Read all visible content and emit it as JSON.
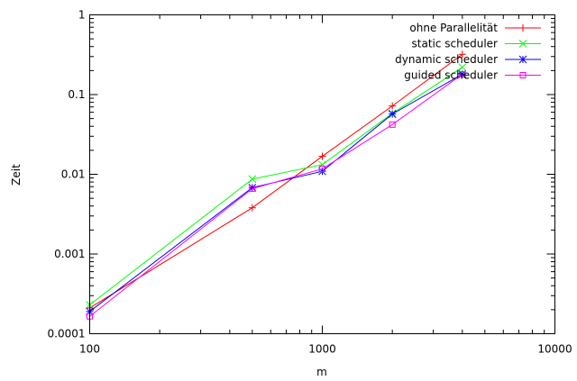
{
  "chart_data": {
    "type": "line",
    "title": "",
    "xlabel": "m",
    "ylabel": "Zeit",
    "xscale": "log",
    "yscale": "log",
    "xlim": [
      100,
      10000
    ],
    "ylim": [
      0.0001,
      1
    ],
    "x_ticks": [
      "100",
      "1000",
      "10000"
    ],
    "y_ticks": [
      "0.0001",
      "0.001",
      "0.01",
      "0.1",
      "1"
    ],
    "grid": false,
    "legend_position": "top-right",
    "series": [
      {
        "name": "ohne Parallelität",
        "color": "#ff0000",
        "marker": "plus",
        "x": [
          100,
          500,
          1000,
          2000,
          4000
        ],
        "y": [
          0.00021,
          0.0038,
          0.0168,
          0.072,
          0.32
        ]
      },
      {
        "name": "static scheduler",
        "color": "#00ff00",
        "marker": "x",
        "x": [
          100,
          500,
          1000,
          2000,
          4000
        ],
        "y": [
          0.00023,
          0.0087,
          0.0132,
          0.058,
          0.22
        ]
      },
      {
        "name": "dynamic scheduler",
        "color": "#0000ff",
        "marker": "star",
        "x": [
          100,
          500,
          1000,
          2000,
          4000
        ],
        "y": [
          0.00019,
          0.0068,
          0.0109,
          0.057,
          0.18
        ]
      },
      {
        "name": "guided scheduler",
        "color": "#ff00ff",
        "marker": "square",
        "x": [
          100,
          500,
          1000,
          2000,
          4000
        ],
        "y": [
          0.000165,
          0.0066,
          0.0117,
          0.042,
          0.18
        ]
      }
    ]
  }
}
